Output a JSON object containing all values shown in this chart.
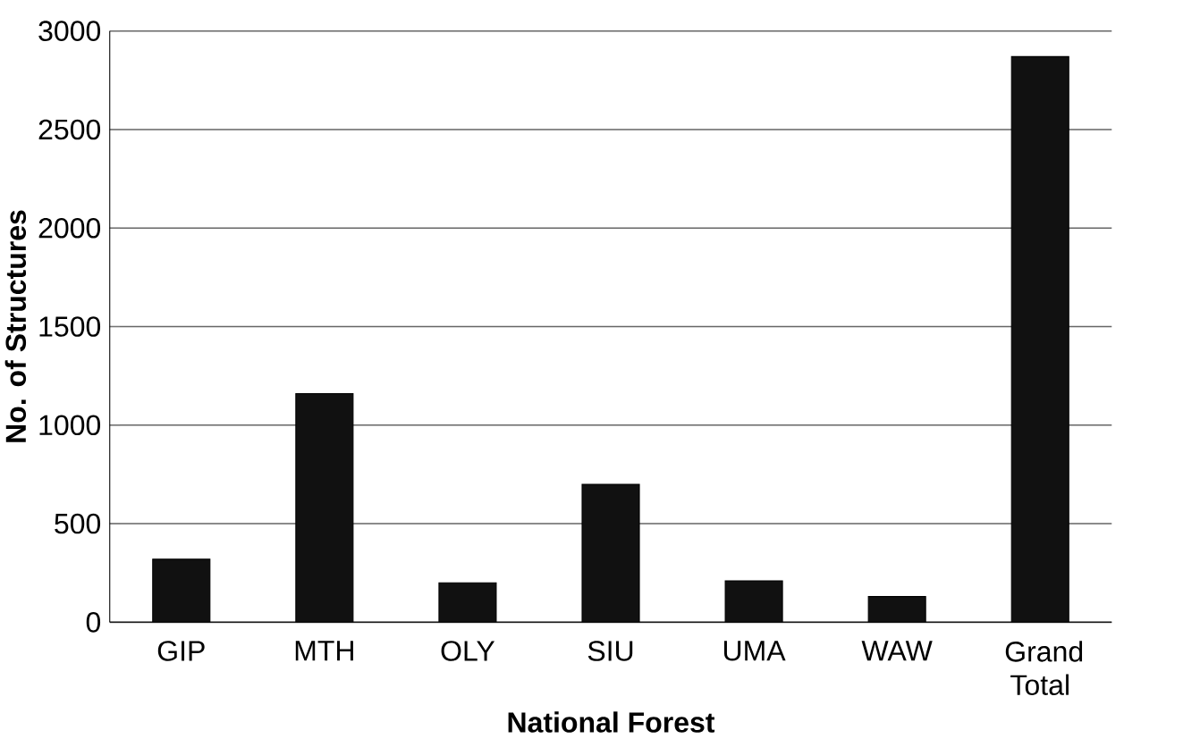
{
  "chart_data": {
    "type": "bar",
    "xlabel": "National Forest",
    "ylabel": "No. of Structures",
    "categories": [
      "GIP",
      "MTH",
      "OLY",
      "SIU",
      "UMA",
      "WAW",
      "Grand Total"
    ],
    "values": [
      320,
      1160,
      200,
      700,
      210,
      130,
      2870
    ],
    "color": "#111111",
    "ylim": [
      0,
      3000
    ],
    "yticks": [
      0,
      500,
      1000,
      1500,
      2000,
      2500,
      3000
    ],
    "grid": "y"
  }
}
